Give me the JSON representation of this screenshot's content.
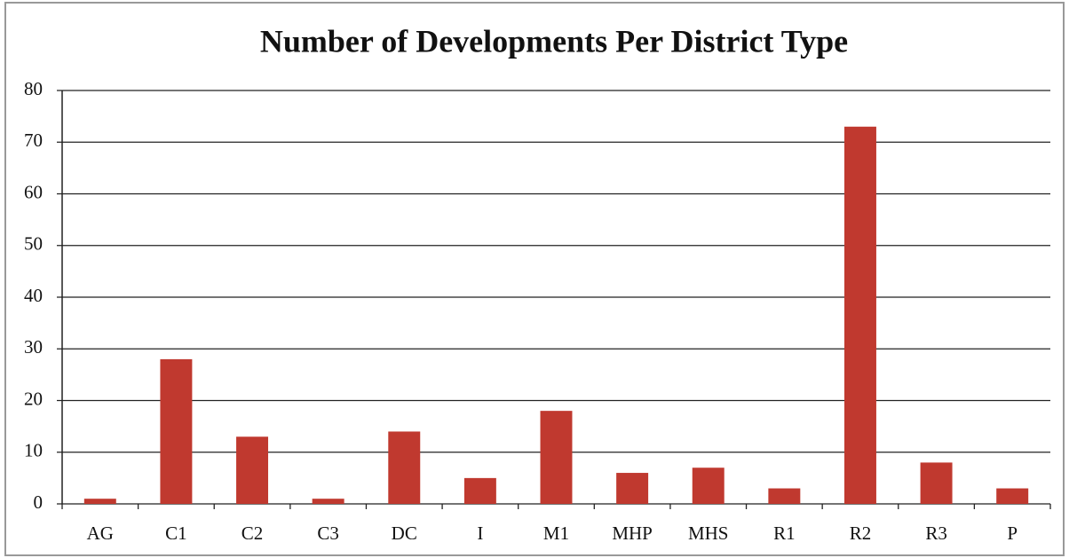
{
  "chart_data": {
    "type": "bar",
    "title": "Number of Developments Per District Type",
    "categories": [
      "AG",
      "C1",
      "C2",
      "C3",
      "DC",
      "I",
      "M1",
      "MHP",
      "MHS",
      "R1",
      "R2",
      "R3",
      "P"
    ],
    "values": [
      1,
      28,
      13,
      1,
      14,
      5,
      18,
      6,
      7,
      3,
      73,
      8,
      3
    ],
    "color": "#c0392f",
    "ylim": [
      0,
      80
    ],
    "yticks": [
      0,
      10,
      20,
      30,
      40,
      50,
      60,
      70,
      80
    ],
    "grid": true
  }
}
